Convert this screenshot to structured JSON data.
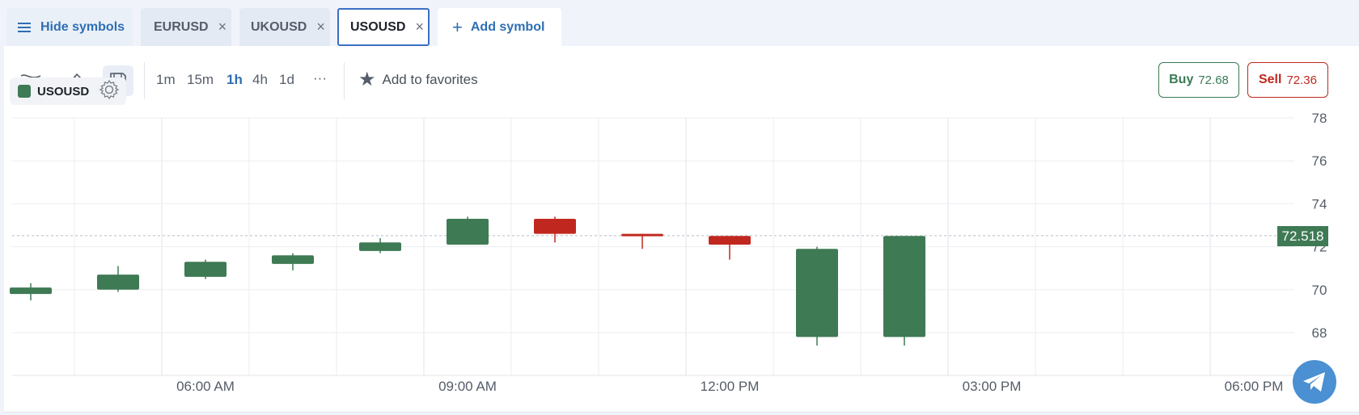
{
  "tabs": {
    "hide_label": "Hide symbols",
    "symbols": [
      {
        "label": "EURUSD",
        "close": "×"
      },
      {
        "label": "UKOUSD",
        "close": "×"
      },
      {
        "label": "USOUSD",
        "close": "×",
        "active": true
      }
    ],
    "add_label": "Add symbol",
    "add_plus": "+"
  },
  "toolbar": {
    "timeframes": [
      "1m",
      "15m",
      "1h",
      "4h",
      "1d"
    ],
    "selected_timeframe": "1h",
    "more": "···",
    "favorites_label": "Add to favorites",
    "icons": [
      "indicators-icon",
      "pencil-icon",
      "save-icon",
      "star-icon"
    ]
  },
  "trade": {
    "buy_label": "Buy",
    "buy_price": "72.68",
    "sell_label": "Sell",
    "sell_price": "72.36"
  },
  "legend": {
    "symbol": "USOUSD",
    "color": "#3e7a54"
  },
  "current_price": "72.518",
  "colors": {
    "up": "#3e7a54",
    "down": "#c0281f",
    "accent": "#2f6eb3"
  },
  "chart_data": {
    "type": "candlestick",
    "y_ticks": [
      68,
      70,
      72,
      74,
      76,
      78
    ],
    "ylim": [
      66,
      78
    ],
    "x_tick_labels": [
      "06:00 AM",
      "09:00 AM",
      "12:00 PM",
      "03:00 PM",
      "06:00 PM"
    ],
    "current_price": 72.518,
    "candles": [
      {
        "time": "04:00 AM",
        "open": 69.8,
        "high": 70.3,
        "low": 69.5,
        "close": 70.1
      },
      {
        "time": "05:00 AM",
        "open": 70.0,
        "high": 71.1,
        "low": 69.9,
        "close": 70.7
      },
      {
        "time": "06:00 AM",
        "open": 70.6,
        "high": 71.4,
        "low": 70.5,
        "close": 71.3
      },
      {
        "time": "07:00 AM",
        "open": 71.2,
        "high": 71.7,
        "low": 70.9,
        "close": 71.6
      },
      {
        "time": "08:00 AM",
        "open": 71.8,
        "high": 72.4,
        "low": 71.7,
        "close": 72.2
      },
      {
        "time": "09:00 AM",
        "open": 72.1,
        "high": 73.4,
        "low": 72.1,
        "close": 73.3
      },
      {
        "time": "10:00 AM",
        "open": 73.3,
        "high": 73.4,
        "low": 72.2,
        "close": 72.6
      },
      {
        "time": "11:00 AM",
        "open": 72.6,
        "high": 72.6,
        "low": 71.9,
        "close": 72.5
      },
      {
        "time": "12:00 PM",
        "open": 72.5,
        "high": 72.5,
        "low": 71.4,
        "close": 72.1
      },
      {
        "time": "01:00 PM",
        "open": 67.8,
        "high": 72.0,
        "low": 67.4,
        "close": 71.9
      },
      {
        "time": "02:00 PM",
        "open": 67.8,
        "high": 72.5,
        "low": 67.4,
        "close": 72.5
      }
    ]
  }
}
